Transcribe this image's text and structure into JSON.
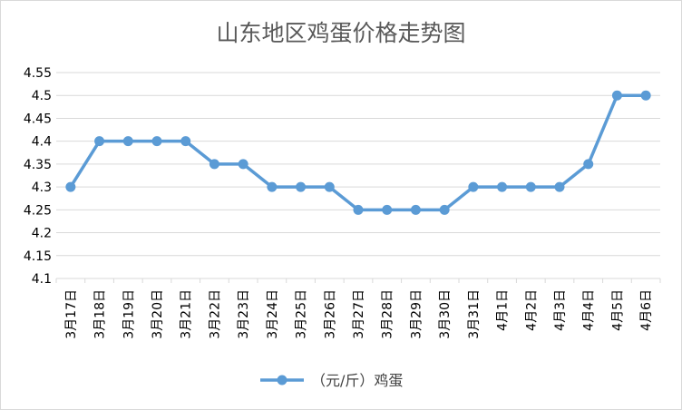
{
  "chart_data": {
    "type": "line",
    "title": "山东地区鸡蛋价格走势图",
    "xlabel": "",
    "ylabel": "",
    "categories": [
      "3月17日",
      "3月18日",
      "3月19日",
      "3月20日",
      "3月21日",
      "3月22日",
      "3月23日",
      "3月24日",
      "3月25日",
      "3月26日",
      "3月27日",
      "3月28日",
      "3月29日",
      "3月30日",
      "3月31日",
      "4月1日",
      "4月2日",
      "4月3日",
      "4月4日",
      "4月5日",
      "4月6日"
    ],
    "series": [
      {
        "name": "（元/斤）鸡蛋",
        "values": [
          4.3,
          4.4,
          4.4,
          4.4,
          4.4,
          4.35,
          4.35,
          4.3,
          4.3,
          4.3,
          4.25,
          4.25,
          4.25,
          4.25,
          4.3,
          4.3,
          4.3,
          4.3,
          4.35,
          4.5,
          4.5
        ]
      }
    ],
    "ylim": [
      4.1,
      4.55
    ],
    "yticks": [
      "4.1",
      "4.15",
      "4.2",
      "4.25",
      "4.3",
      "4.35",
      "4.4",
      "4.45",
      "4.5",
      "4.55"
    ],
    "grid": true,
    "legend_position": "bottom",
    "colors": {
      "series": "#5b9bd5",
      "grid": "#d9d9d9"
    }
  }
}
